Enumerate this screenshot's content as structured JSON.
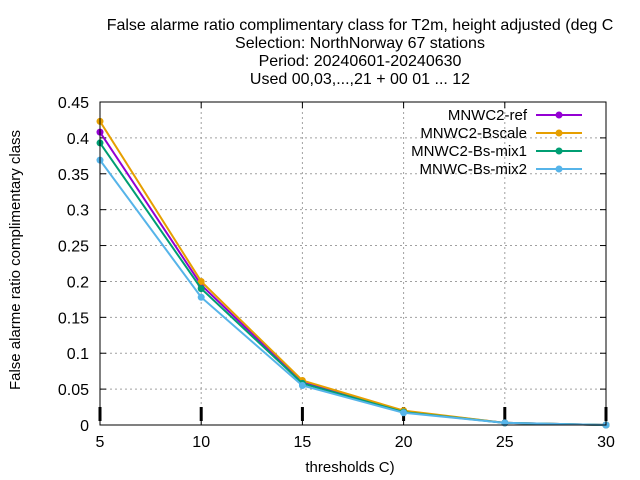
{
  "chart_data": {
    "type": "line",
    "title_lines": [
      "False alarme ratio complimentary class  for T2m, height adjusted (deg C",
      "Selection: NorthNorway     67 stations",
      "Period: 20240601-20240630",
      "Used 00,03,...,21 + 00 01 ... 12"
    ],
    "xlabel": "thresholds C)",
    "ylabel": "False alarme ratio complimentary class",
    "x": [
      5,
      10,
      15,
      20,
      25,
      30
    ],
    "xlim": [
      5,
      30
    ],
    "ylim": [
      0,
      0.45
    ],
    "x_ticks": [
      "5",
      "10",
      "15",
      "20",
      "25",
      "30"
    ],
    "y_ticks": [
      "0",
      "0.05",
      "0.1",
      "0.15",
      "0.2",
      "0.25",
      "0.3",
      "0.35",
      "0.4",
      "0.45"
    ],
    "grid": true,
    "legend_position": "top-right",
    "series": [
      {
        "name": "MNWC2-ref",
        "color": "#9400d3",
        "values": [
          0.408,
          0.195,
          0.06,
          0.019,
          0.003,
          0.0
        ]
      },
      {
        "name": "MNWC2-Bscale",
        "color": "#e69f00",
        "values": [
          0.423,
          0.2,
          0.062,
          0.02,
          0.003,
          0.0
        ]
      },
      {
        "name": "MNWC2-Bs-mix1",
        "color": "#009e73",
        "values": [
          0.393,
          0.19,
          0.058,
          0.018,
          0.003,
          0.0
        ]
      },
      {
        "name": "MNWC-Bs-mix2",
        "color": "#56b4e9",
        "values": [
          0.369,
          0.178,
          0.055,
          0.017,
          0.003,
          0.0
        ]
      }
    ]
  }
}
